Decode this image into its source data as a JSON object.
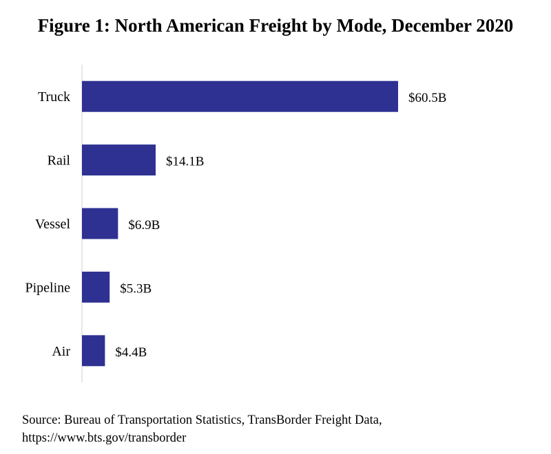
{
  "title": "Figure 1: North American Freight by Mode, December 2020",
  "source": {
    "line1": "Source: Bureau of Transportation Statistics, TransBorder Freight Data,",
    "line2": "https://www.bts.gov/transborder"
  },
  "colors": {
    "bar": "#2e3192",
    "axis": "#d0d0d0",
    "text": "#000000"
  },
  "chart_data": {
    "type": "bar",
    "orientation": "horizontal",
    "title": "Figure 1: North American Freight by Mode, December 2020",
    "categories": [
      "Truck",
      "Rail",
      "Vessel",
      "Pipeline",
      "Air"
    ],
    "values": [
      60.5,
      14.1,
      6.9,
      5.3,
      4.4
    ],
    "data_labels": [
      "$60.5B",
      "$14.1B",
      "$6.9B",
      "$5.3B",
      "$4.4B"
    ],
    "xlim": [
      0,
      60.5
    ],
    "grid": false,
    "legend": "none"
  }
}
